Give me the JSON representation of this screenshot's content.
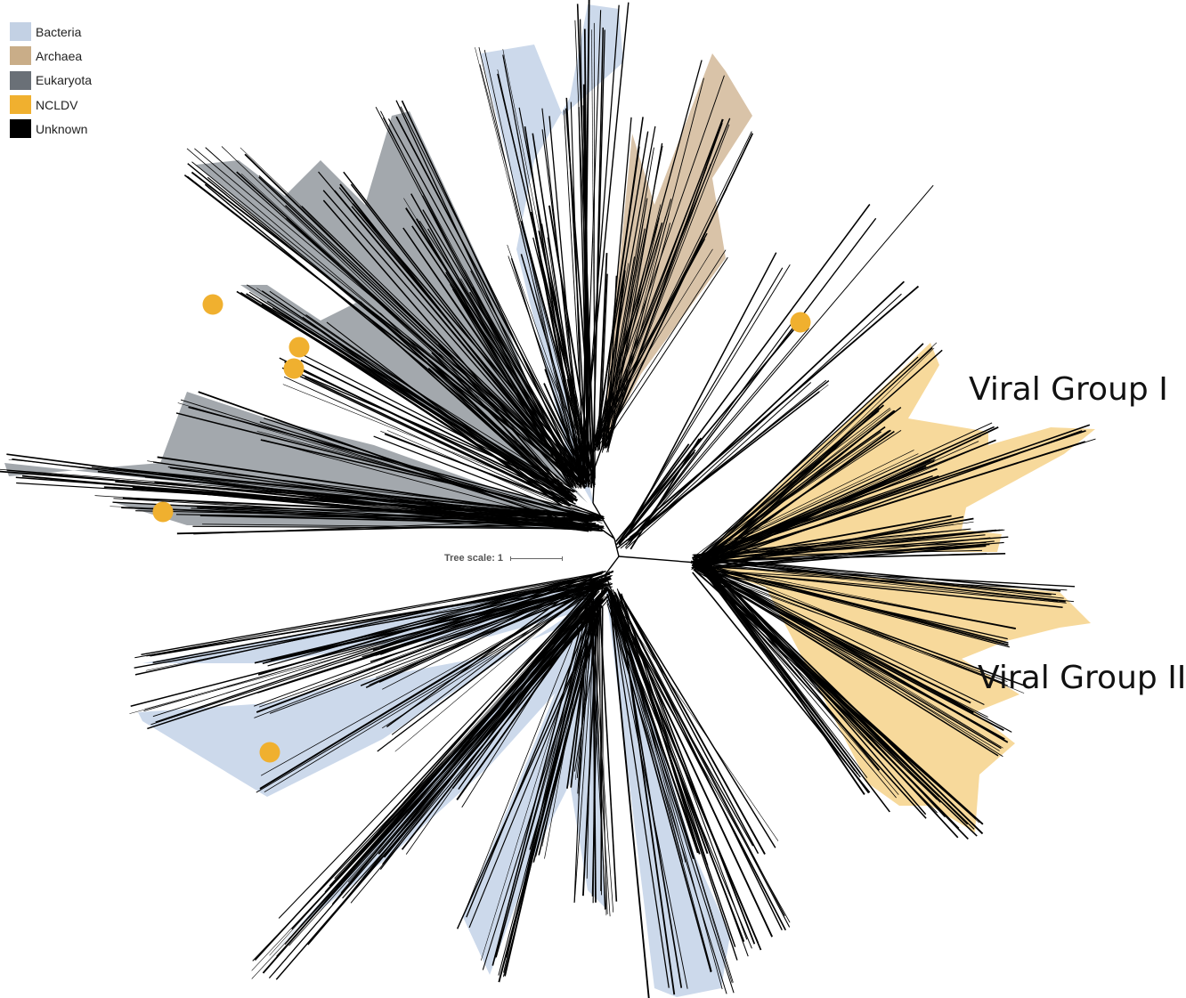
{
  "legend": {
    "items": [
      {
        "label": "Bacteria",
        "color": "#c3d1e4"
      },
      {
        "label": "Archaea",
        "color": "#c9ad88"
      },
      {
        "label": "Eukaryota",
        "color": "#6a7077"
      },
      {
        "label": "NCLDV",
        "color": "#f0b02f"
      },
      {
        "label": "Unknown",
        "color": "#000000"
      }
    ]
  },
  "scale": {
    "label": "Tree scale: 1"
  },
  "groups": {
    "group1": "Viral Group I",
    "group2": "Viral Group II"
  },
  "colors": {
    "bacteria_fill": "#ccd9eb",
    "archaea_fill": "#d9c3a8",
    "eukaryota_fill": "#a3a8ad",
    "ncldv_fill": "#f7d99b",
    "ncldv_marker": "#f0b02f",
    "branch": "#000000"
  }
}
